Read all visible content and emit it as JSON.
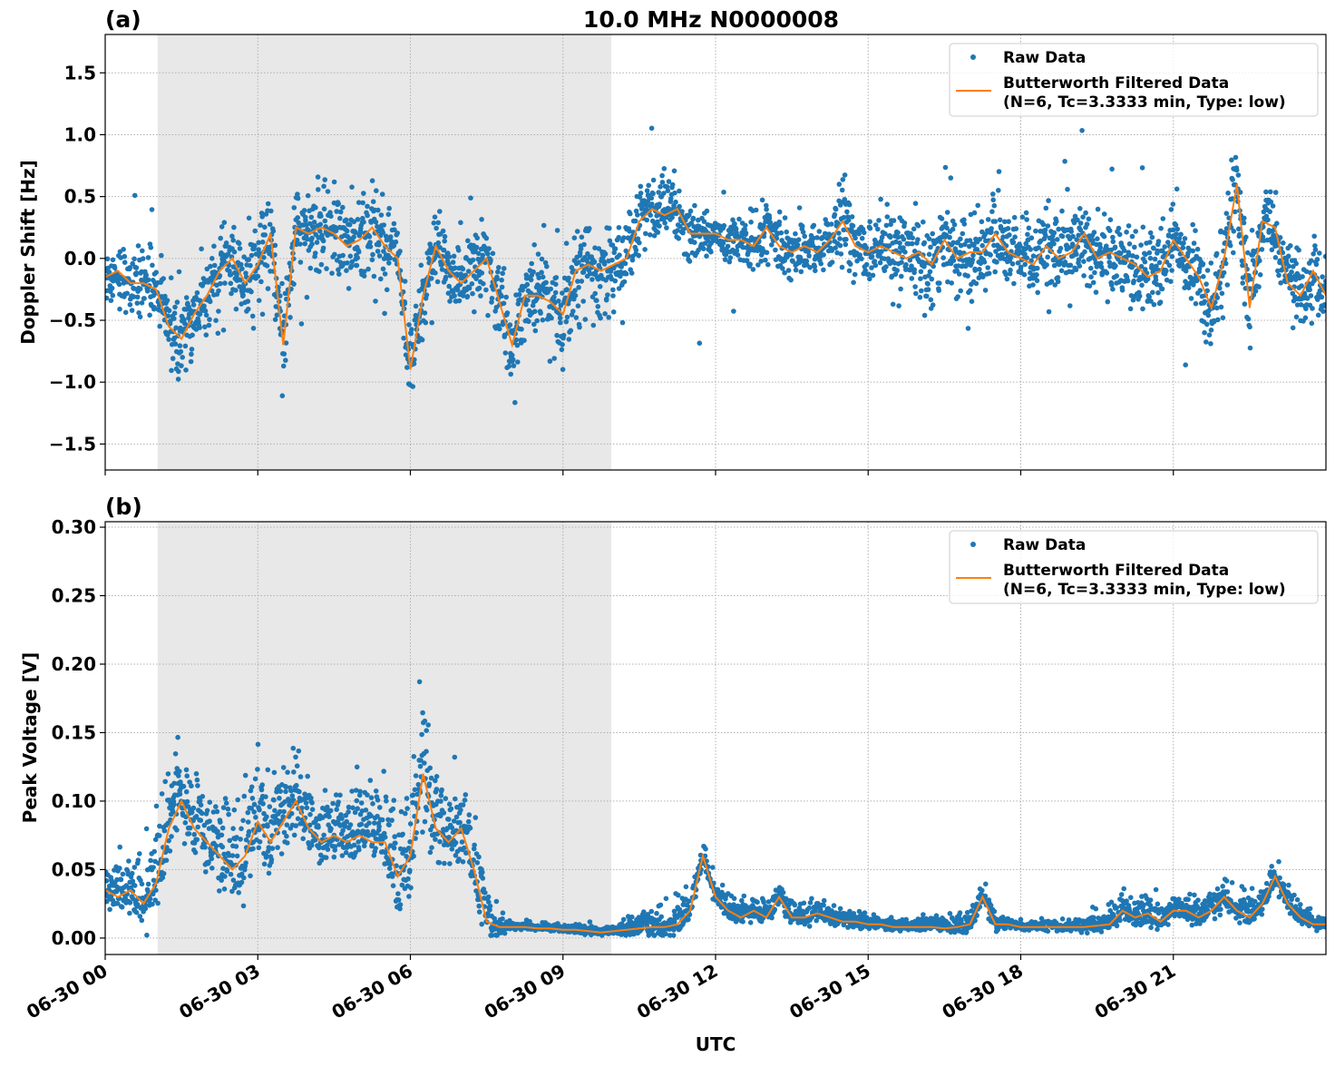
{
  "chart_data": [
    {
      "type": "scatter",
      "panel_label": "(a)",
      "title": "10.0 MHz N0000008",
      "xlabel": "UTC",
      "ylabel": "Doppler Shift [Hz]",
      "xlim_hours": [
        0,
        24
      ],
      "ylim": [
        -1.71,
        1.81
      ],
      "x_ticks": [
        "06-30 00",
        "06-30 03",
        "06-30 06",
        "06-30 09",
        "06-30 12",
        "06-30 15",
        "06-30 18",
        "06-30 21"
      ],
      "x_tick_hours": [
        0,
        3,
        6,
        9,
        12,
        15,
        18,
        21
      ],
      "y_ticks": [
        -1.5,
        -1.0,
        -0.5,
        0.0,
        0.5,
        1.0,
        1.5
      ],
      "y_tick_labels": [
        "−1.5",
        "−1.0",
        "−0.5",
        "0.0",
        "0.5",
        "1.0",
        "1.5"
      ],
      "grid": true,
      "shaded_interval_hours": [
        1.03,
        9.95
      ],
      "legend_placement": "top-right",
      "legend": [
        "Raw Data",
        "Butterworth Filtered Data\n(N=6, Tc=3.3333 min, Type: low)"
      ],
      "colors": {
        "raw": "#1f77b4",
        "filtered": "#ff7f0e",
        "shade": "#e8e8e8"
      },
      "filtered_step_hours": 0.25,
      "filtered": [
        -0.15,
        -0.1,
        -0.2,
        -0.2,
        -0.25,
        -0.55,
        -0.65,
        -0.45,
        -0.3,
        -0.1,
        0.0,
        -0.2,
        -0.05,
        0.2,
        -0.7,
        0.25,
        0.2,
        0.25,
        0.2,
        0.1,
        0.15,
        0.25,
        0.1,
        0.0,
        -0.9,
        -0.3,
        0.1,
        -0.1,
        -0.2,
        -0.1,
        0.0,
        -0.35,
        -0.7,
        -0.3,
        -0.3,
        -0.35,
        -0.45,
        -0.1,
        -0.05,
        -0.1,
        -0.05,
        0.0,
        0.3,
        0.4,
        0.35,
        0.4,
        0.2,
        0.2,
        0.2,
        0.15,
        0.15,
        0.1,
        0.25,
        0.1,
        0.05,
        0.1,
        0.05,
        0.15,
        0.3,
        0.1,
        0.05,
        0.1,
        0.05,
        0.0,
        0.05,
        -0.05,
        0.15,
        0.0,
        0.05,
        0.05,
        0.2,
        0.05,
        0.0,
        -0.05,
        0.1,
        0.0,
        0.05,
        0.2,
        0.0,
        0.05,
        0.0,
        -0.05,
        -0.15,
        -0.1,
        0.15,
        0.0,
        -0.15,
        -0.4,
        0.0,
        0.6,
        -0.4,
        0.3,
        0.25,
        -0.2,
        -0.3,
        -0.1,
        -0.3
      ],
      "raw_spread_hourly": [
        0.2,
        0.25,
        0.25,
        0.3,
        0.3,
        0.3,
        0.3,
        0.25,
        0.3,
        0.35,
        0.3,
        0.25,
        0.15,
        0.2,
        0.25,
        0.25,
        0.3,
        0.3,
        0.3,
        0.3,
        0.3,
        0.3,
        0.35,
        0.25,
        0.25
      ]
    },
    {
      "type": "scatter",
      "panel_label": "(b)",
      "xlabel": "UTC",
      "ylabel": "Peak Voltage [V]",
      "xlim_hours": [
        0,
        24
      ],
      "ylim": [
        -0.012,
        0.304
      ],
      "x_ticks": [
        "06-30 00",
        "06-30 03",
        "06-30 06",
        "06-30 09",
        "06-30 12",
        "06-30 15",
        "06-30 18",
        "06-30 21"
      ],
      "x_tick_hours": [
        0,
        3,
        6,
        9,
        12,
        15,
        18,
        21
      ],
      "y_ticks": [
        0.0,
        0.05,
        0.1,
        0.15,
        0.2,
        0.25,
        0.3
      ],
      "y_tick_labels": [
        "0.00",
        "0.05",
        "0.10",
        "0.15",
        "0.20",
        "0.25",
        "0.30"
      ],
      "grid": true,
      "shaded_interval_hours": [
        1.03,
        9.95
      ],
      "legend_placement": "top-right",
      "legend": [
        "Raw Data",
        "Butterworth Filtered Data\n(N=6, Tc=3.3333 min, Type: low)"
      ],
      "colors": {
        "raw": "#1f77b4",
        "filtered": "#ff7f0e",
        "shade": "#e8e8e8"
      },
      "filtered_step_hours": 0.25,
      "filtered": [
        0.035,
        0.03,
        0.035,
        0.025,
        0.04,
        0.08,
        0.1,
        0.08,
        0.07,
        0.06,
        0.05,
        0.06,
        0.085,
        0.07,
        0.085,
        0.1,
        0.08,
        0.07,
        0.075,
        0.07,
        0.075,
        0.07,
        0.07,
        0.045,
        0.06,
        0.12,
        0.08,
        0.07,
        0.08,
        0.05,
        0.012,
        0.008,
        0.008,
        0.008,
        0.007,
        0.007,
        0.006,
        0.006,
        0.005,
        0.004,
        0.005,
        0.006,
        0.007,
        0.008,
        0.008,
        0.01,
        0.02,
        0.06,
        0.03,
        0.02,
        0.015,
        0.02,
        0.015,
        0.03,
        0.015,
        0.015,
        0.018,
        0.015,
        0.012,
        0.012,
        0.01,
        0.01,
        0.008,
        0.008,
        0.008,
        0.008,
        0.007,
        0.008,
        0.01,
        0.03,
        0.01,
        0.01,
        0.008,
        0.008,
        0.008,
        0.008,
        0.008,
        0.008,
        0.009,
        0.01,
        0.02,
        0.015,
        0.018,
        0.012,
        0.02,
        0.02,
        0.015,
        0.02,
        0.03,
        0.02,
        0.015,
        0.025,
        0.045,
        0.025,
        0.015,
        0.01,
        0.01
      ],
      "raw_spread_hourly": [
        0.015,
        0.04,
        0.04,
        0.04,
        0.03,
        0.03,
        0.05,
        0.04,
        0.003,
        0.003,
        0.004,
        0.015,
        0.01,
        0.012,
        0.008,
        0.006,
        0.005,
        0.01,
        0.004,
        0.005,
        0.012,
        0.01,
        0.012,
        0.012,
        0.006
      ]
    }
  ]
}
